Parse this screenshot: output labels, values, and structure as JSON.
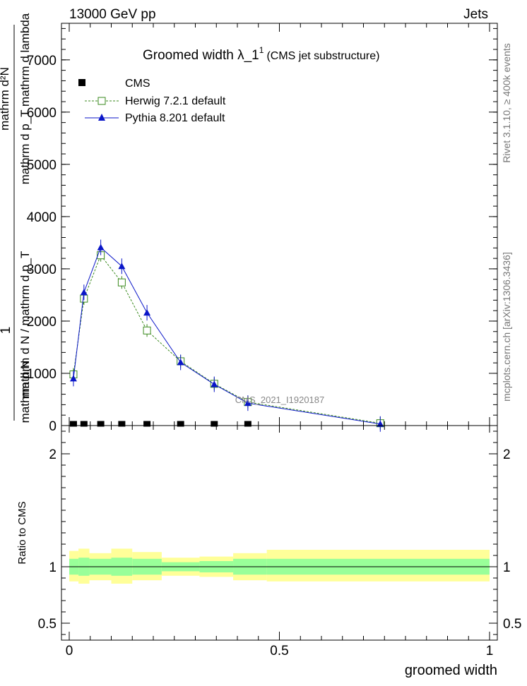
{
  "header": {
    "left": "13000 GeV pp",
    "right": "Jets"
  },
  "side_labels": {
    "rivet": "Rivet 3.1.10, ≥ 400k events",
    "mcplots": "mcplots.cern.ch [arXiv:1306.3436]"
  },
  "chart_data": {
    "type": "line",
    "title": "Groomed width  λ_1",
    "title_superscript": "1",
    "title_suffix": "(CMS jet substructure)",
    "watermark": "CMS_2021_I1920187",
    "ylabel_top": "1",
    "ylabel_lines": [
      "mathrm d²N",
      "mathrm d p_T mathrm d lambda"
    ],
    "ylabel_lower": [
      "mathrm d N / mathrm d p_T",
      "mathrm d N"
    ],
    "xlabel": "groomed width",
    "ratio_ylabel": "Ratio to CMS",
    "xlim": [
      0,
      1
    ],
    "ylim": [
      0,
      7700
    ],
    "ratio_ylim": [
      0.35,
      2.25
    ],
    "x_ticks": [
      "0",
      "0.5",
      "1"
    ],
    "y_ticks": [
      "0",
      "1000",
      "2000",
      "3000",
      "4000",
      "5000",
      "6000",
      "7000"
    ],
    "ratio_ticks": [
      "0.5",
      "1",
      "2"
    ],
    "series": [
      {
        "name": "CMS",
        "color": "#000000",
        "marker": "square",
        "x": [
          0.01,
          0.035,
          0.075,
          0.125,
          0.185,
          0.265,
          0.345,
          0.425,
          0.74
        ],
        "values": [
          20,
          20,
          20,
          20,
          20,
          20,
          20,
          20,
          20
        ]
      },
      {
        "name": "Herwig 7.2.1 default",
        "color": "#3a8a1d",
        "marker": "open-square",
        "x": [
          0.01,
          0.035,
          0.075,
          0.125,
          0.185,
          0.265,
          0.345,
          0.425,
          0.74
        ],
        "values": [
          980,
          2430,
          3260,
          2740,
          1820,
          1230,
          800,
          450,
          45
        ]
      },
      {
        "name": "Pythia 8.201 default",
        "color": "#0a16c8",
        "marker": "triangle",
        "x": [
          0.01,
          0.035,
          0.075,
          0.125,
          0.185,
          0.265,
          0.345,
          0.425,
          0.74
        ],
        "values": [
          900,
          2550,
          3410,
          3050,
          2160,
          1210,
          790,
          430,
          30
        ]
      }
    ],
    "ratio_band_edges": [
      0,
      0.022,
      0.048,
      0.1,
      0.15,
      0.22,
      0.31,
      0.39,
      0.47,
      1.0
    ],
    "ratio_yellow": [
      [
        0.87,
        1.14
      ],
      [
        0.85,
        1.16
      ],
      [
        0.88,
        1.12
      ],
      [
        0.85,
        1.16
      ],
      [
        0.88,
        1.13
      ],
      [
        0.92,
        1.08
      ],
      [
        0.91,
        1.09
      ],
      [
        0.88,
        1.12
      ],
      [
        0.87,
        1.15
      ]
    ],
    "ratio_green": [
      [
        0.93,
        1.07
      ],
      [
        0.92,
        1.08
      ],
      [
        0.93,
        1.07
      ],
      [
        0.92,
        1.08
      ],
      [
        0.93,
        1.07
      ],
      [
        0.96,
        1.04
      ],
      [
        0.95,
        1.05
      ],
      [
        0.93,
        1.07
      ],
      [
        0.93,
        1.07
      ]
    ]
  }
}
